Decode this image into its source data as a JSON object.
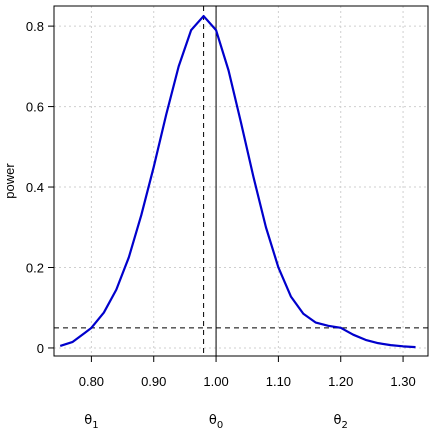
{
  "chart_data": {
    "type": "line",
    "title": "",
    "xlabel": "",
    "ylabel": "power",
    "xlim": [
      0.74,
      1.34
    ],
    "ylim": [
      -0.02,
      0.85
    ],
    "xticks": [
      0.8,
      0.9,
      1.0,
      1.1,
      1.2,
      1.3
    ],
    "xtick_labels": [
      "0.80",
      "0.90",
      "1.00",
      "1.10",
      "1.20",
      "1.30"
    ],
    "yticks": [
      0,
      0.2,
      0.4,
      0.6,
      0.8
    ],
    "ytick_labels": [
      "0",
      "0.2",
      "0.4",
      "0.6",
      "0.8"
    ],
    "grid": true,
    "series": [
      {
        "color": "#0000cc",
        "x": [
          0.75,
          0.77,
          0.79,
          0.8,
          0.82,
          0.84,
          0.86,
          0.88,
          0.9,
          0.92,
          0.94,
          0.96,
          0.98,
          1.0,
          1.02,
          1.04,
          1.06,
          1.08,
          1.1,
          1.12,
          1.14,
          1.16,
          1.18,
          1.2,
          1.22,
          1.24,
          1.26,
          1.28,
          1.3,
          1.32
        ],
        "y": [
          0.005,
          0.015,
          0.038,
          0.05,
          0.088,
          0.145,
          0.225,
          0.33,
          0.45,
          0.58,
          0.7,
          0.79,
          0.825,
          0.79,
          0.69,
          0.56,
          0.425,
          0.3,
          0.2,
          0.128,
          0.085,
          0.063,
          0.055,
          0.05,
          0.033,
          0.02,
          0.012,
          0.007,
          0.004,
          0.002
        ]
      }
    ],
    "reference_lines": {
      "horizontal_dashed_y": 0.05,
      "vertical_dashed_x": 0.98,
      "vertical_solid_x": 1.0
    },
    "annotations": [
      {
        "base": "θ",
        "sub": "1",
        "x": 0.8
      },
      {
        "base": "θ",
        "sub": "0",
        "x": 1.0
      },
      {
        "base": "θ",
        "sub": "2",
        "x": 1.2
      }
    ]
  }
}
